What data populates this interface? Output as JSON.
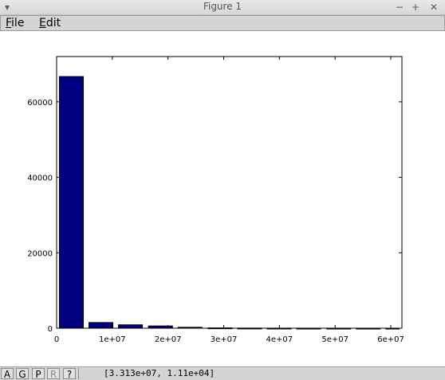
{
  "window": {
    "title": "Figure 1",
    "controls": {
      "menu": "▾",
      "minimize": "−",
      "maximize": "+",
      "close": "✕"
    }
  },
  "menu": {
    "file": {
      "mnemonic": "F",
      "rest": "ile"
    },
    "edit": {
      "mnemonic": "E",
      "rest": "dit"
    }
  },
  "status": {
    "buttons": [
      "A",
      "G",
      "P",
      "R",
      "?"
    ],
    "coordinates": "[3.313e+07, 1.11e+04]"
  },
  "chart_data": {
    "type": "bar",
    "title": "",
    "xlabel": "",
    "ylabel": "",
    "xlim": [
      0,
      62000000
    ],
    "ylim": [
      0,
      72000
    ],
    "xticks": [
      0,
      10000000,
      20000000,
      30000000,
      40000000,
      50000000,
      60000000
    ],
    "xtick_labels": [
      "0",
      "1e+07",
      "2e+07",
      "3e+07",
      "4e+07",
      "5e+07",
      "6e+07"
    ],
    "yticks": [
      0,
      20000,
      40000,
      60000
    ],
    "ytick_labels": [
      "0",
      "20000",
      "40000",
      "60000"
    ],
    "bins": [
      {
        "x0": 500000,
        "x1": 4800000,
        "value": 66700
      },
      {
        "x0": 5800000,
        "x1": 10100000,
        "value": 1500
      },
      {
        "x0": 11100000,
        "x1": 15400000,
        "value": 900
      },
      {
        "x0": 16500000,
        "x1": 20800000,
        "value": 600
      },
      {
        "x0": 21800000,
        "x1": 26100000,
        "value": 250
      },
      {
        "x0": 27200000,
        "x1": 31500000,
        "value": 80
      },
      {
        "x0": 32500000,
        "x1": 36800000,
        "value": 30
      },
      {
        "x0": 37800000,
        "x1": 42100000,
        "value": 15
      },
      {
        "x0": 43100000,
        "x1": 47400000,
        "value": 8
      },
      {
        "x0": 48500000,
        "x1": 52800000,
        "value": 5
      },
      {
        "x0": 53800000,
        "x1": 58100000,
        "value": 3
      },
      {
        "x0": 59100000,
        "x1": 61500000,
        "value": 2
      }
    ],
    "bar_color": "#000080",
    "grid": false
  }
}
